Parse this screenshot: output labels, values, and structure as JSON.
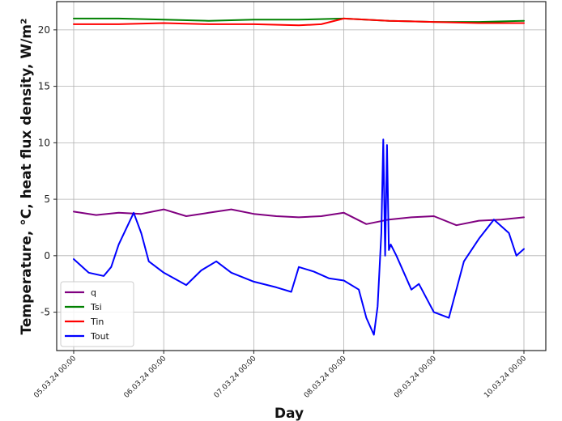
{
  "chart_data": {
    "type": "line",
    "xlabel": "Day",
    "ylabel": "Temperature, °C, heat flux density, W/m²",
    "x_start": "05.03.24 00:00",
    "x_end": "10.03.24 00:00",
    "x_ticks": [
      "05.03.24 00:00",
      "06.03.24 00:00",
      "07.03.24 00:00",
      "08.03.24 00:00",
      "09.03.24 00:00",
      "10.03.24 00:00"
    ],
    "y_ticks": [
      -5,
      0,
      5,
      10,
      15,
      20
    ],
    "ylim": [
      -8.4,
      22.5
    ],
    "grid": true,
    "legend_position": "lower-left",
    "series": [
      {
        "name": "q",
        "color": "#800080",
        "x": [
          "05.03.24 00:00",
          "05.03.24 06:00",
          "05.03.24 12:00",
          "05.03.24 18:00",
          "06.03.24 00:00",
          "06.03.24 06:00",
          "06.03.24 12:00",
          "06.03.24 18:00",
          "07.03.24 00:00",
          "07.03.24 06:00",
          "07.03.24 12:00",
          "07.03.24 18:00",
          "08.03.24 00:00",
          "08.03.24 06:00",
          "08.03.24 12:00",
          "08.03.24 18:00",
          "09.03.24 00:00",
          "09.03.24 06:00",
          "09.03.24 12:00",
          "09.03.24 18:00",
          "10.03.24 00:00"
        ],
        "y": [
          3.9,
          3.6,
          3.8,
          3.7,
          4.1,
          3.5,
          3.8,
          4.1,
          3.7,
          3.5,
          3.4,
          3.5,
          3.8,
          2.8,
          3.2,
          3.4,
          3.5,
          2.7,
          3.1,
          3.2,
          3.4
        ]
      },
      {
        "name": "Tsi",
        "color": "#008000",
        "x": [
          "05.03.24 00:00",
          "05.03.24 12:00",
          "06.03.24 00:00",
          "06.03.24 12:00",
          "07.03.24 00:00",
          "07.03.24 12:00",
          "08.03.24 00:00",
          "08.03.24 12:00",
          "09.03.24 00:00",
          "09.03.24 12:00",
          "10.03.24 00:00"
        ],
        "y": [
          21.0,
          21.0,
          20.9,
          20.8,
          20.9,
          20.9,
          21.0,
          20.8,
          20.7,
          20.7,
          20.8
        ]
      },
      {
        "name": "Tin",
        "color": "#ff0000",
        "x": [
          "05.03.24 00:00",
          "05.03.24 12:00",
          "06.03.24 00:00",
          "06.03.24 12:00",
          "07.03.24 00:00",
          "07.03.24 12:00",
          "07.03.24 18:00",
          "08.03.24 00:00",
          "08.03.24 12:00",
          "09.03.24 00:00",
          "09.03.24 12:00",
          "10.03.24 00:00"
        ],
        "y": [
          20.5,
          20.5,
          20.6,
          20.5,
          20.5,
          20.4,
          20.5,
          21.0,
          20.8,
          20.7,
          20.6,
          20.6
        ]
      },
      {
        "name": "Tout",
        "color": "#0000ff",
        "x": [
          "05.03.24 00:00",
          "05.03.24 04:00",
          "05.03.24 08:00",
          "05.03.24 10:00",
          "05.03.24 12:00",
          "05.03.24 16:00",
          "05.03.24 18:00",
          "05.03.24 20:00",
          "06.03.24 00:00",
          "06.03.24 06:00",
          "06.03.24 10:00",
          "06.03.24 14:00",
          "06.03.24 18:00",
          "07.03.24 00:00",
          "07.03.24 06:00",
          "07.03.24 10:00",
          "07.03.24 12:00",
          "07.03.24 16:00",
          "07.03.24 20:00",
          "08.03.24 00:00",
          "08.03.24 04:00",
          "08.03.24 06:00",
          "08.03.24 08:00",
          "08.03.24 09:00",
          "08.03.24 10:00",
          "08.03.24 10:30",
          "08.03.24 11:00",
          "08.03.24 11:30",
          "08.03.24 12:00",
          "08.03.24 12:30",
          "08.03.24 14:00",
          "08.03.24 18:00",
          "08.03.24 20:00",
          "09.03.24 00:00",
          "09.03.24 04:00",
          "09.03.24 08:00",
          "09.03.24 12:00",
          "09.03.24 16:00",
          "09.03.24 20:00",
          "09.03.24 22:00",
          "10.03.24 00:00"
        ],
        "y": [
          -0.3,
          -1.5,
          -1.8,
          -1.0,
          1.0,
          3.8,
          2.0,
          -0.5,
          -1.5,
          -2.6,
          -1.3,
          -0.5,
          -1.5,
          -2.3,
          -2.8,
          -3.2,
          -1.0,
          -1.4,
          -2.0,
          -2.2,
          -3.0,
          -5.5,
          -7.0,
          -4.5,
          2.0,
          10.3,
          0.0,
          9.8,
          0.5,
          1.0,
          0.0,
          -3.0,
          -2.5,
          -5.0,
          -5.5,
          -0.5,
          1.5,
          3.2,
          2.0,
          0.0,
          0.6
        ]
      }
    ]
  }
}
